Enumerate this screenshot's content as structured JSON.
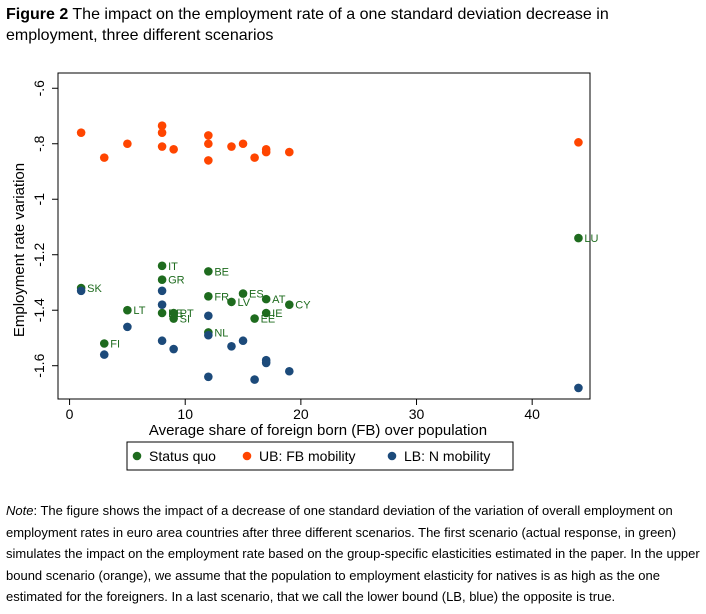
{
  "figure": {
    "label": "Figure 2",
    "title": "The impact on the employment rate of a one standard deviation decrease in employment, three different scenarios"
  },
  "note": {
    "label": "Note",
    "text": ": The figure shows the impact of a decrease of one standard deviation of the variation of overall employment on employment rates in euro area countries after three different scenarios. The first scenario (actual response, in green) simulates the impact on the employment rate based on the group-specific elasticities estimated in the paper. In the upper bound scenario (orange), we assume that the population to employment elasticity for natives is as high as the one estimated for the foreigners. In a last scenario, that we call the lower bound (LB, blue) the opposite is true."
  },
  "colors": {
    "status_quo": "#1e6b1e",
    "ub": "#ff4500",
    "lb": "#1c4a7a",
    "frame": "#000000"
  },
  "chart_data": {
    "type": "scatter",
    "xlabel": "Average share of foreign born (FB) over population",
    "ylabel": "Employment rate variation",
    "xlim": [
      -1,
      45
    ],
    "ylim": [
      -1.72,
      -0.545
    ],
    "xticks": [
      0,
      10,
      20,
      30,
      40
    ],
    "xtick_labels": [
      "0",
      "10",
      "20",
      "30",
      "40"
    ],
    "yticks": [
      -1.6,
      -1.4,
      -1.2,
      -1,
      -0.8,
      -0.6
    ],
    "ytick_labels": [
      "-1.6",
      "-1.4",
      "-1.2",
      "-1",
      "-.8",
      "-.6"
    ],
    "grid": false,
    "legend_position": "bottom",
    "series": [
      {
        "name": "Status quo",
        "color_key": "status_quo",
        "points": [
          {
            "label": "LU",
            "x": 44,
            "y": -1.14
          },
          {
            "label": "SK",
            "x": 1,
            "y": -1.32
          },
          {
            "label": "FI",
            "x": 3,
            "y": -1.52
          },
          {
            "label": "LT",
            "x": 5,
            "y": -1.4
          },
          {
            "label": "IT",
            "x": 8,
            "y": -1.24
          },
          {
            "label": "GR",
            "x": 8,
            "y": -1.29
          },
          {
            "label": "DE",
            "x": 8,
            "y": -1.41
          },
          {
            "label": "PT",
            "x": 9,
            "y": -1.41
          },
          {
            "label": "SI",
            "x": 9,
            "y": -1.43
          },
          {
            "label": "BE",
            "x": 12,
            "y": -1.26
          },
          {
            "label": "FR",
            "x": 12,
            "y": -1.35
          },
          {
            "label": "NL",
            "x": 12,
            "y": -1.48
          },
          {
            "label": "LV",
            "x": 14,
            "y": -1.37
          },
          {
            "label": "ES",
            "x": 15,
            "y": -1.34
          },
          {
            "label": "AT",
            "x": 17,
            "y": -1.36
          },
          {
            "label": "IE",
            "x": 17,
            "y": -1.41
          },
          {
            "label": "EE",
            "x": 16,
            "y": -1.43
          },
          {
            "label": "CY",
            "x": 19,
            "y": -1.38
          }
        ]
      },
      {
        "name": "UB: FB mobility",
        "color_key": "ub",
        "points": [
          {
            "x": 1,
            "y": -0.76
          },
          {
            "x": 3,
            "y": -0.85
          },
          {
            "x": 5,
            "y": -0.8
          },
          {
            "x": 8,
            "y": -0.735
          },
          {
            "x": 8,
            "y": -0.76
          },
          {
            "x": 8,
            "y": -0.81
          },
          {
            "x": 9,
            "y": -0.82
          },
          {
            "x": 12,
            "y": -0.77
          },
          {
            "x": 12,
            "y": -0.8
          },
          {
            "x": 12,
            "y": -0.86
          },
          {
            "x": 14,
            "y": -0.81
          },
          {
            "x": 15,
            "y": -0.8
          },
          {
            "x": 16,
            "y": -0.85
          },
          {
            "x": 17,
            "y": -0.82
          },
          {
            "x": 17,
            "y": -0.83
          },
          {
            "x": 19,
            "y": -0.83
          },
          {
            "x": 44,
            "y": -0.795
          }
        ]
      },
      {
        "name": "LB: N mobility",
        "color_key": "lb",
        "points": [
          {
            "x": 1,
            "y": -1.33
          },
          {
            "x": 3,
            "y": -1.56
          },
          {
            "x": 5,
            "y": -1.46
          },
          {
            "x": 8,
            "y": -1.33
          },
          {
            "x": 8,
            "y": -1.38
          },
          {
            "x": 8,
            "y": -1.51
          },
          {
            "x": 9,
            "y": -1.54
          },
          {
            "x": 12,
            "y": -1.42
          },
          {
            "x": 12,
            "y": -1.49
          },
          {
            "x": 12,
            "y": -1.64
          },
          {
            "x": 14,
            "y": -1.53
          },
          {
            "x": 15,
            "y": -1.51
          },
          {
            "x": 16,
            "y": -1.65
          },
          {
            "x": 17,
            "y": -1.58
          },
          {
            "x": 17,
            "y": -1.59
          },
          {
            "x": 19,
            "y": -1.62
          },
          {
            "x": 44,
            "y": -1.68
          }
        ]
      }
    ]
  }
}
